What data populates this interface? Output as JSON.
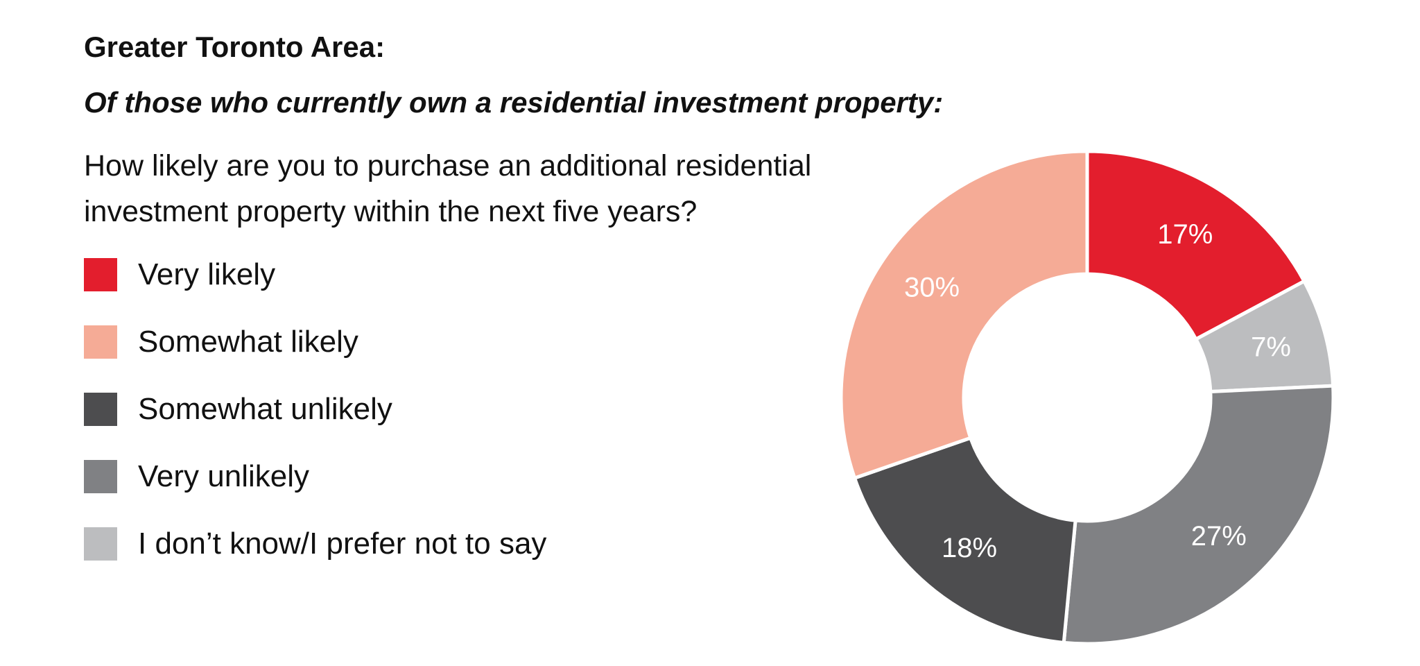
{
  "chart_data": {
    "type": "pie",
    "title": "Greater Toronto Area:",
    "subtitle": "Of those who currently own a residential investment property:",
    "question_lines": [
      "How likely are you to purchase an additional residential",
      "investment property within the next five years?"
    ],
    "legend_placement": "left",
    "series": [
      {
        "name": "Very likely",
        "value": 17,
        "label": "17%",
        "color": "#e31e2d"
      },
      {
        "name": "I don’t know/I prefer not to say",
        "value": 7,
        "label": "7%",
        "color": "#bcbdbf"
      },
      {
        "name": "Very unlikely",
        "value": 27,
        "label": "27%",
        "color": "#808184"
      },
      {
        "name": "Somewhat unlikely",
        "value": 18,
        "label": "18%",
        "color": "#4d4d4f"
      },
      {
        "name": "Somewhat likely",
        "value": 30,
        "label": "30%",
        "color": "#f5ab96"
      }
    ],
    "legend": [
      {
        "name": "Very likely",
        "color": "#e31e2d"
      },
      {
        "name": "Somewhat likely",
        "color": "#f5ab96"
      },
      {
        "name": "Somewhat unlikely",
        "color": "#4d4d4f"
      },
      {
        "name": "Very unlikely",
        "color": "#808184"
      },
      {
        "name": "I don’t know/I prefer not to say",
        "color": "#bcbdbf"
      }
    ]
  }
}
